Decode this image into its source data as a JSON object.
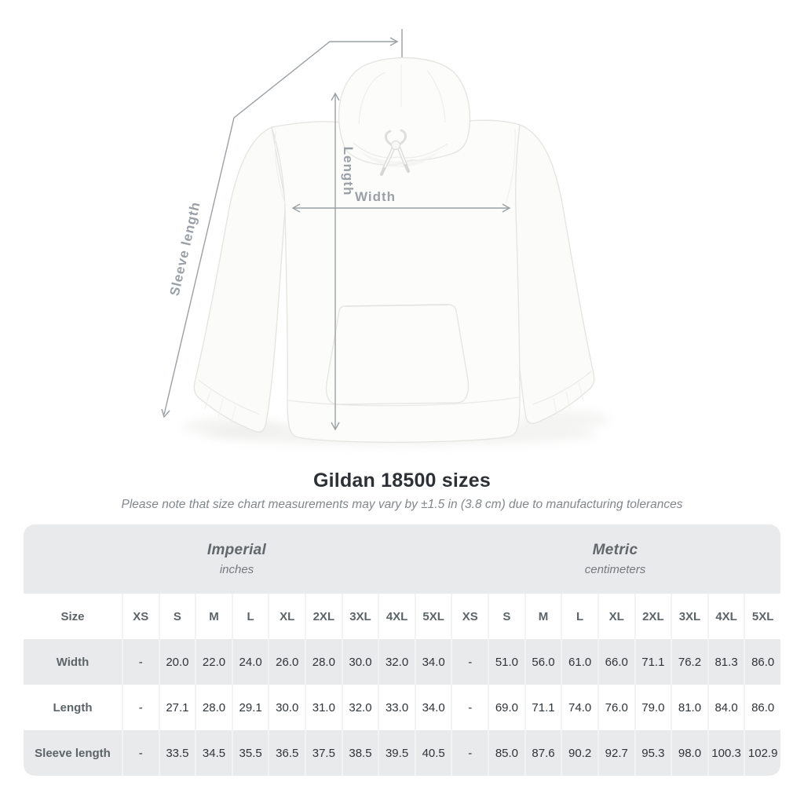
{
  "diagram": {
    "sleeve_length_label": "Sleeve length",
    "length_label": "Length",
    "width_label": "Width"
  },
  "title": "Gildan 18500 sizes",
  "subtitle": "Please note that size chart measurements may vary by ±1.5 in (3.8 cm) due to manufacturing tolerances",
  "table": {
    "size_header": "Size",
    "units": [
      {
        "name": "Imperial",
        "unit": "inches"
      },
      {
        "name": "Metric",
        "unit": "centimeters"
      }
    ],
    "sizes": [
      "XS",
      "S",
      "M",
      "L",
      "XL",
      "2XL",
      "3XL",
      "4XL",
      "5XL"
    ],
    "rows": [
      {
        "label": "Width",
        "imperial": [
          "-",
          "20.0",
          "22.0",
          "24.0",
          "26.0",
          "28.0",
          "30.0",
          "32.0",
          "34.0"
        ],
        "metric": [
          "-",
          "51.0",
          "56.0",
          "61.0",
          "66.0",
          "71.1",
          "76.2",
          "81.3",
          "86.0"
        ]
      },
      {
        "label": "Length",
        "imperial": [
          "-",
          "27.1",
          "28.0",
          "29.1",
          "30.0",
          "31.0",
          "32.0",
          "33.0",
          "34.0"
        ],
        "metric": [
          "-",
          "69.0",
          "71.1",
          "74.0",
          "76.0",
          "79.0",
          "81.0",
          "84.0",
          "86.0"
        ]
      },
      {
        "label": "Sleeve length",
        "imperial": [
          "-",
          "33.5",
          "34.5",
          "35.5",
          "36.5",
          "37.5",
          "38.5",
          "39.5",
          "40.5"
        ],
        "metric": [
          "-",
          "85.0",
          "87.6",
          "90.2",
          "92.7",
          "95.3",
          "98.0",
          "100.3",
          "102.9"
        ]
      }
    ]
  },
  "colors": {
    "table_band_gray": "#e9eaeb",
    "divider": "#f2f3f3",
    "value_text": "#2f3438",
    "label_text": "#5d6468",
    "measure_gray": "#9aa0a5",
    "garment_white": "#fcfcfa"
  }
}
